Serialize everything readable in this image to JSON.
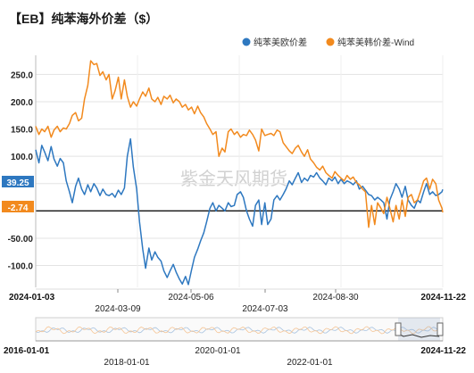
{
  "chart_data": {
    "type": "line",
    "title": "【EB】纯苯海外价差（$）",
    "watermark": "紫金天风期货",
    "x_start_label": "2024-01-03",
    "x_end_label": "2024-11-22",
    "x_axis_labels": [
      "2024-03-09",
      "2024-05-06",
      "2024-07-03",
      "2024-08-30"
    ],
    "y_ticks": [
      "250.0",
      "200.0",
      "150.0",
      "100.0",
      "50.0",
      "-50.00",
      "-100.0"
    ],
    "ylim": [
      -140,
      285
    ],
    "legend": [
      {
        "name": "纯苯美欧价差",
        "color": "#2e78c0"
      },
      {
        "name": "纯苯美韩价差-Wind",
        "color": "#f28a1e"
      }
    ],
    "last_value_tags": [
      {
        "text": "39.25",
        "color": "#2e78c0"
      },
      {
        "text": "-2.74",
        "color": "#f28a1e"
      }
    ],
    "series": [
      {
        "name": "纯苯美欧价差",
        "color": "#2e78c0",
        "points": [
          [
            0,
            112
          ],
          [
            0.8,
            88
          ],
          [
            1.5,
            120
          ],
          [
            2.2,
            108
          ],
          [
            3,
            92
          ],
          [
            3.8,
            118
          ],
          [
            4.5,
            95
          ],
          [
            5.3,
            82
          ],
          [
            6,
            96
          ],
          [
            6.8,
            88
          ],
          [
            7.5,
            55
          ],
          [
            8.3,
            35
          ],
          [
            9,
            15
          ],
          [
            9.8,
            45
          ],
          [
            10.5,
            60
          ],
          [
            11.3,
            40
          ],
          [
            12,
            30
          ],
          [
            12.8,
            48
          ],
          [
            13.5,
            35
          ],
          [
            14.3,
            50
          ],
          [
            15,
            42
          ],
          [
            15.8,
            28
          ],
          [
            16.5,
            40
          ],
          [
            17.3,
            30
          ],
          [
            18,
            28
          ],
          [
            18.8,
            32
          ],
          [
            19.5,
            25
          ],
          [
            20.3,
            38
          ],
          [
            21,
            30
          ],
          [
            21.8,
            42
          ],
          [
            22.5,
            100
          ],
          [
            23.3,
            132
          ],
          [
            24,
            80
          ],
          [
            24.8,
            40
          ],
          [
            25.5,
            -20
          ],
          [
            26.3,
            -70
          ],
          [
            27,
            -105
          ],
          [
            27.8,
            -68
          ],
          [
            28.5,
            -90
          ],
          [
            29.3,
            -75
          ],
          [
            30,
            -85
          ],
          [
            30.8,
            -92
          ],
          [
            31.5,
            -110
          ],
          [
            32.3,
            -122
          ],
          [
            33,
            -110
          ],
          [
            33.8,
            -98
          ],
          [
            34.5,
            -112
          ],
          [
            35.3,
            -125
          ],
          [
            36,
            -134
          ],
          [
            36.8,
            -120
          ],
          [
            37.5,
            -135
          ],
          [
            38.3,
            -108
          ],
          [
            39,
            -85
          ],
          [
            39.8,
            -70
          ],
          [
            40.5,
            -55
          ],
          [
            41.3,
            -40
          ],
          [
            42,
            -20
          ],
          [
            42.8,
            5
          ],
          [
            43.5,
            15
          ],
          [
            44.3,
            0
          ],
          [
            45,
            10
          ],
          [
            45.8,
            5
          ],
          [
            46.5,
            0
          ],
          [
            47.3,
            15
          ],
          [
            48,
            8
          ],
          [
            48.8,
            10
          ],
          [
            49.5,
            30
          ],
          [
            50.3,
            35
          ],
          [
            51,
            25
          ],
          [
            51.8,
            0
          ],
          [
            52.5,
            -15
          ],
          [
            53.3,
            -28
          ],
          [
            54,
            10
          ],
          [
            54.8,
            20
          ],
          [
            55.5,
            -25
          ],
          [
            56.3,
            15
          ],
          [
            57,
            -25
          ],
          [
            57.8,
            -15
          ],
          [
            58.5,
            20
          ],
          [
            59.3,
            28
          ],
          [
            60,
            20
          ],
          [
            60.8,
            30
          ],
          [
            61.5,
            40
          ],
          [
            62.3,
            55
          ],
          [
            63,
            48
          ],
          [
            63.8,
            60
          ],
          [
            64.5,
            70
          ],
          [
            65.3,
            52
          ],
          [
            66,
            60
          ],
          [
            66.8,
            55
          ],
          [
            67.5,
            65
          ],
          [
            68.3,
            62
          ],
          [
            69,
            70
          ],
          [
            69.8,
            60
          ],
          [
            70.5,
            55
          ],
          [
            71.3,
            48
          ],
          [
            72,
            60
          ],
          [
            72.8,
            55
          ],
          [
            73.5,
            62
          ],
          [
            74.3,
            50
          ],
          [
            75,
            58
          ],
          [
            75.8,
            50
          ],
          [
            76.5,
            55
          ],
          [
            77.3,
            52
          ],
          [
            78,
            48
          ],
          [
            78.8,
            55
          ],
          [
            79.5,
            40
          ],
          [
            80.3,
            45
          ],
          [
            81,
            38
          ],
          [
            81.8,
            30
          ],
          [
            82.5,
            28
          ],
          [
            83.3,
            20
          ],
          [
            84,
            25
          ],
          [
            84.8,
            20
          ],
          [
            85.5,
            15
          ],
          [
            86.3,
            -15
          ],
          [
            87,
            20
          ],
          [
            87.8,
            35
          ],
          [
            88.5,
            50
          ],
          [
            89.3,
            40
          ],
          [
            90,
            25
          ],
          [
            90.8,
            45
          ],
          [
            91.5,
            20
          ],
          [
            92.3,
            10
          ],
          [
            93,
            5
          ],
          [
            93.8,
            20
          ],
          [
            94.5,
            15
          ],
          [
            95.3,
            35
          ],
          [
            96,
            50
          ],
          [
            96.8,
            30
          ],
          [
            97.5,
            35
          ],
          [
            98.3,
            28
          ],
          [
            99,
            30
          ],
          [
            99.8,
            35
          ],
          [
            100,
            39.25
          ]
        ]
      },
      {
        "name": "纯苯美韩价差-Wind",
        "color": "#f28a1e",
        "points": [
          [
            0,
            155
          ],
          [
            0.8,
            140
          ],
          [
            1.5,
            150
          ],
          [
            2.2,
            145
          ],
          [
            3,
            155
          ],
          [
            3.8,
            135
          ],
          [
            4.5,
            148
          ],
          [
            5.3,
            155
          ],
          [
            6,
            145
          ],
          [
            6.8,
            152
          ],
          [
            7.5,
            150
          ],
          [
            8.3,
            160
          ],
          [
            9,
            175
          ],
          [
            9.8,
            180
          ],
          [
            10.5,
            165
          ],
          [
            11.3,
            170
          ],
          [
            12,
            205
          ],
          [
            12.8,
            230
          ],
          [
            13.5,
            275
          ],
          [
            14.3,
            268
          ],
          [
            15,
            270
          ],
          [
            15.8,
            248
          ],
          [
            16.5,
            255
          ],
          [
            17.3,
            240
          ],
          [
            18,
            250
          ],
          [
            18.8,
            205
          ],
          [
            19.5,
            220
          ],
          [
            20.3,
            245
          ],
          [
            21,
            205
          ],
          [
            21.8,
            240
          ],
          [
            22.5,
            210
          ],
          [
            23.3,
            190
          ],
          [
            24,
            200
          ],
          [
            24.8,
            192
          ],
          [
            25.5,
            205
          ],
          [
            26.3,
            218
          ],
          [
            27,
            210
          ],
          [
            27.8,
            225
          ],
          [
            28.5,
            205
          ],
          [
            29.3,
            200
          ],
          [
            30,
            208
          ],
          [
            30.8,
            195
          ],
          [
            31.5,
            210
          ],
          [
            32.3,
            205
          ],
          [
            33,
            212
          ],
          [
            33.8,
            198
          ],
          [
            34.5,
            205
          ],
          [
            35.3,
            200
          ],
          [
            36,
            190
          ],
          [
            36.8,
            195
          ],
          [
            37.5,
            185
          ],
          [
            38.3,
            190
          ],
          [
            39,
            178
          ],
          [
            39.8,
            192
          ],
          [
            40.5,
            180
          ],
          [
            41.3,
            172
          ],
          [
            42,
            160
          ],
          [
            42.8,
            150
          ],
          [
            43.5,
            140
          ],
          [
            44.3,
            145
          ],
          [
            45,
            100
          ],
          [
            45.8,
            115
          ],
          [
            46.5,
            108
          ],
          [
            47.3,
            145
          ],
          [
            48,
            150
          ],
          [
            48.8,
            140
          ],
          [
            49.5,
            145
          ],
          [
            50.3,
            135
          ],
          [
            51,
            140
          ],
          [
            51.8,
            138
          ],
          [
            52.5,
            148
          ],
          [
            53.3,
            140
          ],
          [
            54,
            130
          ],
          [
            54.8,
            110
          ],
          [
            55.5,
            150
          ],
          [
            56.3,
            138
          ],
          [
            57,
            140
          ],
          [
            57.8,
            142
          ],
          [
            58.5,
            138
          ],
          [
            59.3,
            148
          ],
          [
            60,
            145
          ],
          [
            60.8,
            125
          ],
          [
            61.5,
            118
          ],
          [
            62.3,
            110
          ],
          [
            63,
            105
          ],
          [
            63.8,
            115
          ],
          [
            64.5,
            120
          ],
          [
            65.3,
            108
          ],
          [
            66,
            100
          ],
          [
            66.8,
            112
          ],
          [
            67.5,
            95
          ],
          [
            68.3,
            88
          ],
          [
            69,
            80
          ],
          [
            69.8,
            75
          ],
          [
            70.5,
            82
          ],
          [
            71.3,
            70
          ],
          [
            72,
            65
          ],
          [
            72.8,
            60
          ],
          [
            73.5,
            72
          ],
          [
            74.3,
            65
          ],
          [
            75,
            60
          ],
          [
            75.8,
            55
          ],
          [
            76.5,
            65
          ],
          [
            77.3,
            58
          ],
          [
            78,
            62
          ],
          [
            78.8,
            52
          ],
          [
            79.5,
            48
          ],
          [
            80.3,
            40
          ],
          [
            81,
            35
          ],
          [
            81.8,
            -30
          ],
          [
            82.5,
            10
          ],
          [
            83.3,
            -25
          ],
          [
            84,
            15
          ],
          [
            84.8,
            5
          ],
          [
            85.5,
            -5
          ],
          [
            86.3,
            25
          ],
          [
            87,
            5
          ],
          [
            87.8,
            -20
          ],
          [
            88.5,
            10
          ],
          [
            89.3,
            -15
          ],
          [
            90,
            20
          ],
          [
            90.8,
            -10
          ],
          [
            91.5,
            25
          ],
          [
            92.3,
            30
          ],
          [
            93,
            15
          ],
          [
            93.8,
            20
          ],
          [
            94.5,
            35
          ],
          [
            95.3,
            55
          ],
          [
            96,
            60
          ],
          [
            96.8,
            40
          ],
          [
            97.5,
            58
          ],
          [
            98.3,
            50
          ],
          [
            99,
            20
          ],
          [
            99.8,
            5
          ],
          [
            100,
            -2.74
          ]
        ]
      }
    ],
    "navigator": {
      "labels_bottom": [
        "2016-01-01",
        "2024-11-22"
      ],
      "labels_lower": [
        "2018-01-01",
        "2022-01-01"
      ],
      "labels_upper": [
        "2020-01-01"
      ]
    }
  }
}
